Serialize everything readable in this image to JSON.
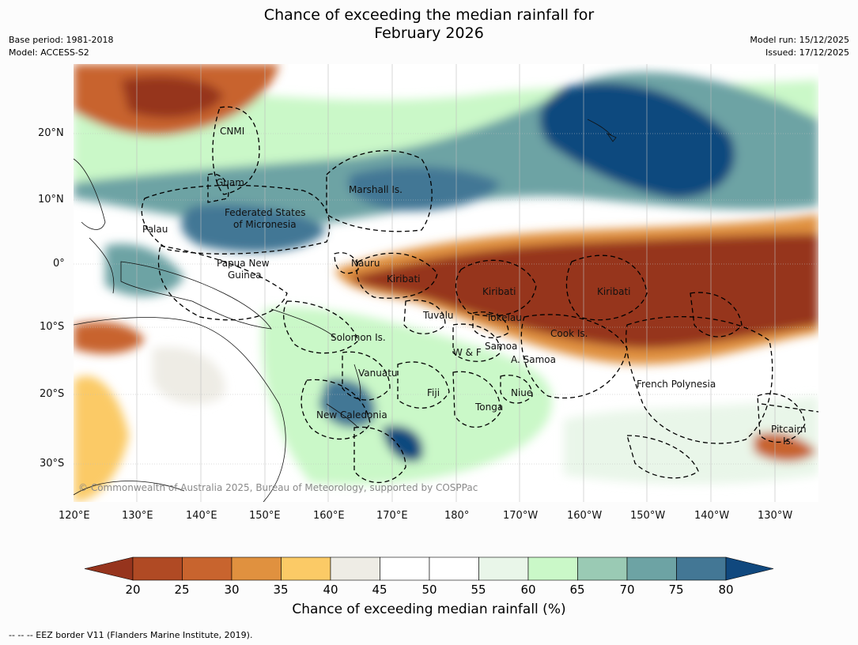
{
  "title_line1": "Chance of exceeding the median rainfall for",
  "title_line2": "February 2026",
  "meta": {
    "base_period": "Base period: 1981-2018",
    "model": "Model: ACCESS-S2",
    "model_run": "Model run: 15/12/2025",
    "issued": "Issued: 17/12/2025"
  },
  "lon_ticks": [
    "120°E",
    "130°E",
    "140°E",
    "150°E",
    "160°E",
    "170°E",
    "180°",
    "170°W",
    "160°W",
    "150°W",
    "140°W",
    "130°W"
  ],
  "lat_ticks": [
    "20°N",
    "10°N",
    "0°",
    "10°S",
    "20°S",
    "30°S"
  ],
  "regions": {
    "cnmi": "CNMI",
    "guam": "Guam",
    "marshall": "Marshall Is.",
    "fsm1": "Federated States",
    "fsm2": "of Micronesia",
    "palau": "Palau",
    "png1": "Papua New",
    "png2": "Guinea",
    "nauru": "Nauru",
    "kiribati_w": "Kiribati",
    "kiribati_c": "Kiribati",
    "kiribati_e": "Kiribati",
    "tuvalu": "Tuvalu",
    "tokelau": "Tokelau",
    "cook": "Cook Is.",
    "solomon": "Solomon Is.",
    "samoa": "Samoa",
    "wf": "W & F",
    "asamoa": "A. Samoa",
    "vanuatu": "Vanuatu",
    "fiji": "Fiji",
    "niue": "Niue",
    "frpoly": "French Polynesia",
    "tonga": "Tonga",
    "newcal": "New Caledonia",
    "pitcairn1": "Pitcairn",
    "pitcairn2": "Is."
  },
  "copyright": "© Commonwealth of Australia 2025, Bureau of Meteorology, supported by COSPPac",
  "colorbar": {
    "labels": [
      "20",
      "25",
      "30",
      "35",
      "40",
      "45",
      "50",
      "55",
      "60",
      "65",
      "70",
      "75",
      "80"
    ],
    "colors": {
      "lt20": "#96341d",
      "c20": "#b04a24",
      "c25": "#c8642e",
      "c30": "#e0913f",
      "c35": "#fbca66",
      "c40": "#eeece5",
      "c45": "#ffffff",
      "c50": "#ffffff",
      "c55": "#e9f6e9",
      "c60": "#caf8c8",
      "c65": "#9acab4",
      "c70": "#6da3a4",
      "c75": "#437795",
      "gt80": "#10487e"
    },
    "title": "Chance of exceeding median rainfall (%)"
  },
  "footer": "--  --  -- EEZ border V11 (Flanders Marine Institute, 2019)."
}
